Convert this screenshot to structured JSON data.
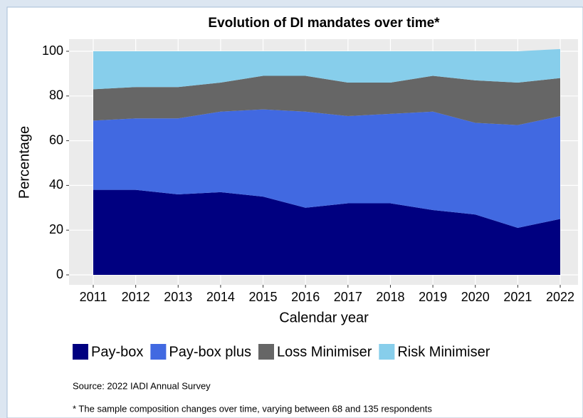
{
  "chart_data": {
    "type": "stacked_area",
    "title": "Evolution of DI mandates over time*",
    "x_label": "Calendar year",
    "y_label": "Percentage",
    "x": [
      2011,
      2012,
      2013,
      2014,
      2015,
      2016,
      2017,
      2018,
      2019,
      2020,
      2021,
      2022
    ],
    "xlim": [
      2011,
      2022
    ],
    "xticks": [
      2011,
      2012,
      2013,
      2014,
      2015,
      2016,
      2017,
      2018,
      2019,
      2020,
      2021,
      2022
    ],
    "ylim": [
      0,
      100
    ],
    "yticks": [
      0,
      20,
      40,
      60,
      80,
      100
    ],
    "grid": true,
    "legend": "bottom",
    "series": [
      {
        "name": "Pay-box",
        "color": "#000080",
        "values": [
          38,
          38,
          36,
          37,
          35,
          30,
          32,
          32,
          29,
          27,
          21,
          25
        ]
      },
      {
        "name": "Pay-box plus",
        "color": "#4169e1",
        "values": [
          31,
          32,
          34,
          36,
          39,
          43,
          39,
          40,
          44,
          41,
          46,
          46
        ]
      },
      {
        "name": "Loss Minimiser",
        "color": "#666666",
        "values": [
          14,
          14,
          14,
          13,
          15,
          16,
          15,
          14,
          16,
          19,
          19,
          17
        ]
      },
      {
        "name": "Risk Minimiser",
        "color": "#87ceeb",
        "values": [
          17,
          16,
          16,
          14,
          11,
          11,
          14,
          14,
          11,
          13,
          14,
          13
        ]
      }
    ],
    "source": "Source: 2022 IADI Annual Survey",
    "note": "* The sample composition changes over time, varying between 68 and 135 respondents"
  }
}
